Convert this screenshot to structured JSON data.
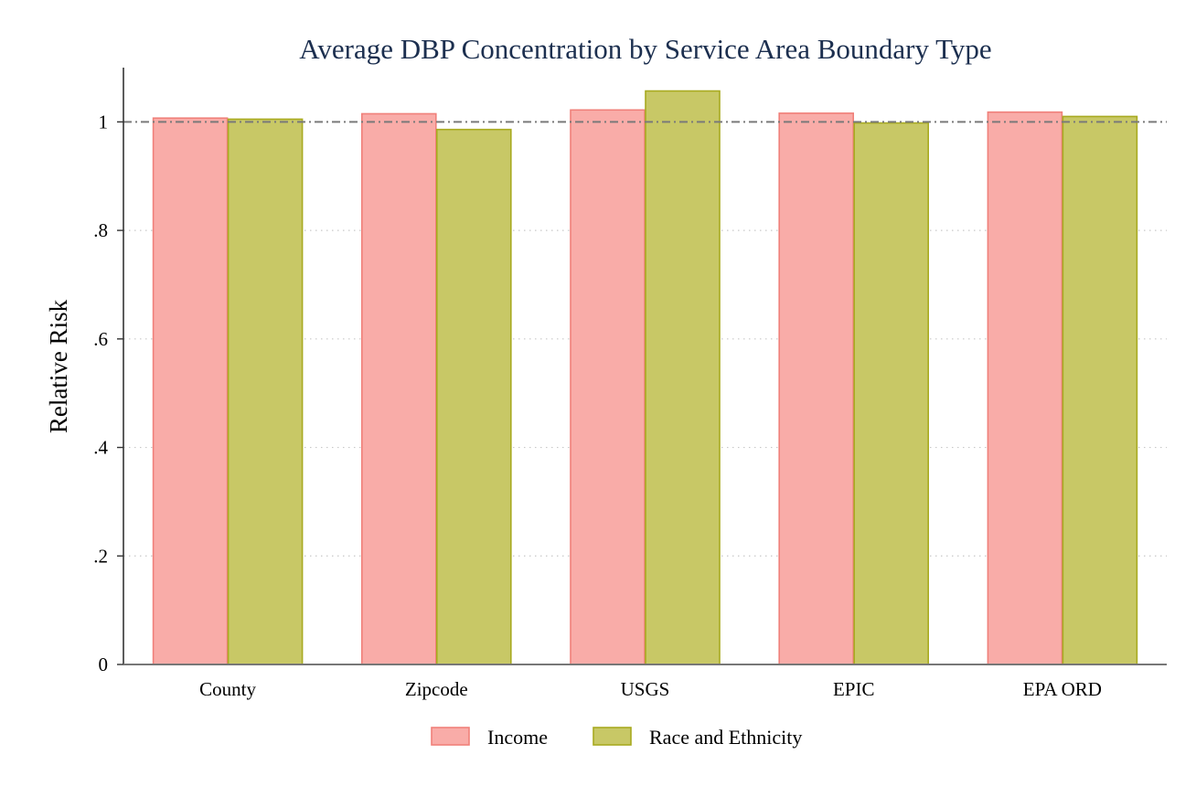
{
  "chart_data": {
    "type": "bar",
    "title": "Average DBP Concentration by Service Area Boundary Type",
    "xlabel": "",
    "ylabel": "Relative Risk",
    "categories": [
      "County",
      "Zipcode",
      "USGS",
      "EPIC",
      "EPA ORD"
    ],
    "series": [
      {
        "name": "Income",
        "values": [
          1.007,
          1.015,
          1.022,
          1.016,
          1.018
        ],
        "color": "#f9aca8",
        "stroke": "#f0807a"
      },
      {
        "name": "Race and Ethnicity",
        "values": [
          1.005,
          0.986,
          1.057,
          0.998,
          1.01
        ],
        "color": "#c8c866",
        "stroke": "#a8aa20"
      }
    ],
    "ylim": [
      0,
      1.1
    ],
    "yticks": [
      0,
      0.2,
      0.4,
      0.6,
      0.8,
      1
    ],
    "ytick_labels": [
      "0",
      ".2",
      ".4",
      ".6",
      ".8",
      "1"
    ],
    "reference_line": 1,
    "grid": "horizontal dotted",
    "legend_position": "bottom"
  }
}
